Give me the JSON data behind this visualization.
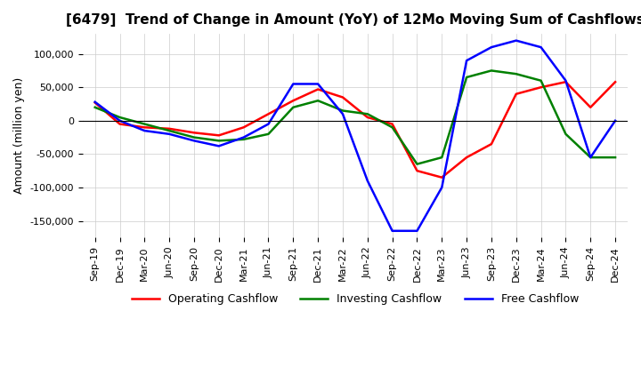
{
  "title": "[6479]  Trend of Change in Amount (YoY) of 12Mo Moving Sum of Cashflows",
  "ylabel": "Amount (million yen)",
  "ylim": [
    -175000,
    130000
  ],
  "yticks": [
    -150000,
    -100000,
    -50000,
    0,
    50000,
    100000
  ],
  "x_labels": [
    "Sep-19",
    "Dec-19",
    "Mar-20",
    "Jun-20",
    "Sep-20",
    "Dec-20",
    "Mar-21",
    "Jun-21",
    "Sep-21",
    "Dec-21",
    "Mar-22",
    "Jun-22",
    "Sep-22",
    "Dec-22",
    "Mar-23",
    "Jun-23",
    "Sep-23",
    "Dec-23",
    "Mar-24",
    "Jun-24",
    "Sep-24",
    "Dec-24"
  ],
  "operating": [
    27000,
    -5000,
    -10000,
    -12000,
    -18000,
    -22000,
    -10000,
    10000,
    30000,
    47000,
    35000,
    5000,
    -5000,
    -75000,
    -85000,
    -55000,
    -35000,
    40000,
    50000,
    58000,
    20000,
    58000
  ],
  "investing": [
    20000,
    5000,
    -5000,
    -15000,
    -25000,
    -30000,
    -28000,
    -20000,
    20000,
    30000,
    15000,
    10000,
    -10000,
    -65000,
    -55000,
    65000,
    75000,
    70000,
    60000,
    -20000,
    -55000,
    -55000
  ],
  "free": [
    28000,
    0,
    -15000,
    -20000,
    -30000,
    -38000,
    -25000,
    -5000,
    55000,
    55000,
    10000,
    -90000,
    -165000,
    -165000,
    -100000,
    90000,
    110000,
    120000,
    110000,
    60000,
    -55000,
    0
  ],
  "line_colors": {
    "operating": "#ff0000",
    "investing": "#008000",
    "free": "#0000ff"
  },
  "legend_labels": [
    "Operating Cashflow",
    "Investing Cashflow",
    "Free Cashflow"
  ],
  "background_color": "#ffffff",
  "grid_color": "#cccccc"
}
